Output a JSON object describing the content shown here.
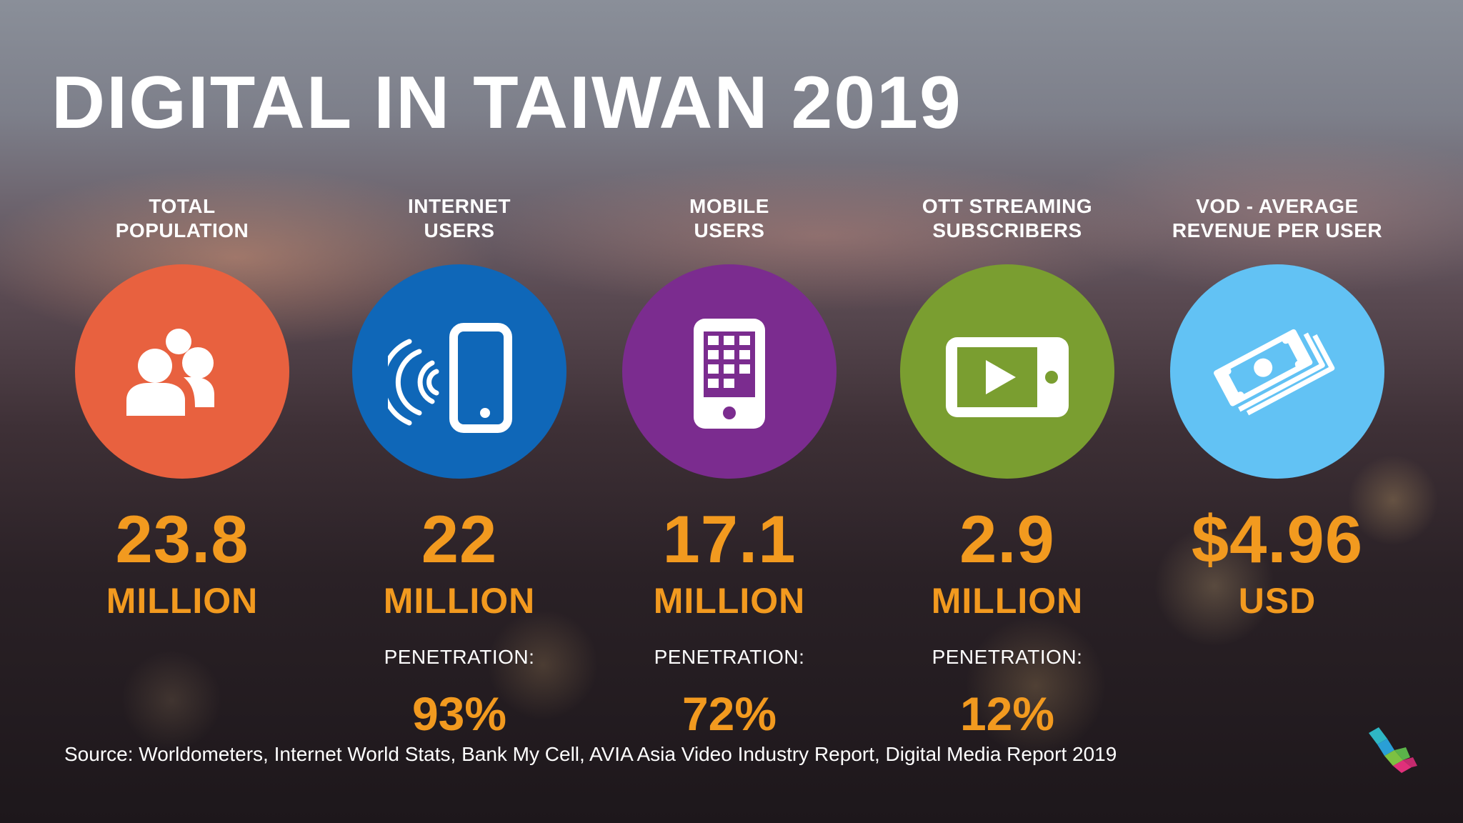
{
  "title": "DIGITAL IN TAIWAN 2019",
  "stats": [
    {
      "label_line1": "TOTAL",
      "label_line2": "POPULATION",
      "icon": "people-icon",
      "color": "#e8613f",
      "value": "23.8",
      "unit": "MILLION"
    },
    {
      "label_line1": "INTERNET",
      "label_line2": "USERS",
      "icon": "wireless-phone-icon",
      "color": "#0f67b8",
      "value": "22",
      "unit": "MILLION",
      "penetration_label": "PENETRATION:",
      "penetration_value": "93%"
    },
    {
      "label_line1": "MOBILE",
      "label_line2": "USERS",
      "icon": "mobile-phone-icon",
      "color": "#7b2c8f",
      "value": "17.1",
      "unit": "MILLION",
      "penetration_label": "PENETRATION:",
      "penetration_value": "72%"
    },
    {
      "label_line1": "OTT STREAMING",
      "label_line2": "SUBSCRIBERS",
      "icon": "video-player-icon",
      "color": "#7a9e30",
      "value": "2.9",
      "unit": "MILLION",
      "penetration_label": "PENETRATION:",
      "penetration_value": "12%"
    },
    {
      "label_line1": "VOD - AVERAGE",
      "label_line2": "REVENUE PER USER",
      "icon": "money-stack-icon",
      "color": "#62c2f4",
      "value": "$4.96",
      "unit": "USD"
    }
  ],
  "source": "Source: Worldometers, Internet World Stats, Bank My Cell, AVIA Asia Video Industry Report, Digital Media Report 2019",
  "colors": {
    "accent": "#f29a1f",
    "logo_teal": "#2fb7c4",
    "logo_green": "#7cc142",
    "logo_pink": "#e0307a"
  }
}
